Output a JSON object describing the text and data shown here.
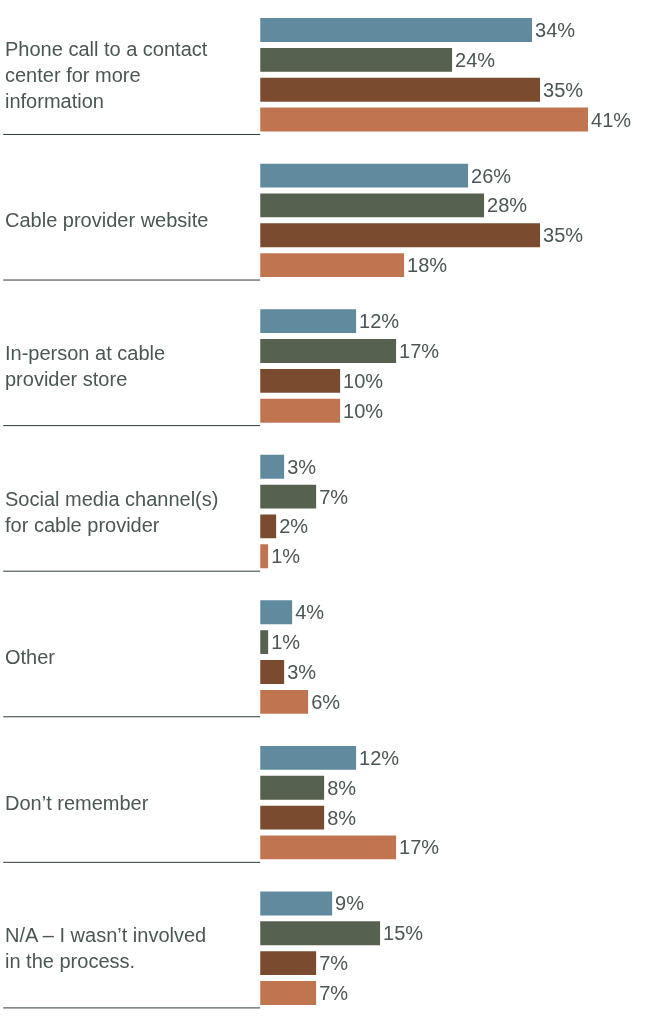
{
  "chart_data": {
    "type": "bar",
    "orientation": "horizontal",
    "categories": [
      "Phone call to a contact\ncenter for more\ninformation",
      "Cable provider website",
      "In-person at cable\nprovider store",
      "Social media channel(s)\nfor cable provider",
      "Other",
      "Don’t remember",
      "N/A – I wasn’t involved\nin the process."
    ],
    "series": [
      {
        "color": "#608a9e",
        "values": [
          34,
          26,
          12,
          3,
          4,
          12,
          9
        ],
        "value_labels": [
          "34%",
          "26%",
          "12%",
          "3%",
          "4%",
          "12%",
          "9%"
        ]
      },
      {
        "color": "#56614f",
        "values": [
          24,
          28,
          17,
          7,
          1,
          8,
          15
        ],
        "value_labels": [
          "24%",
          "28%",
          "17%",
          "7%",
          "1%",
          "8%",
          "15%"
        ]
      },
      {
        "color": "#7a4b2f",
        "values": [
          35,
          35,
          10,
          2,
          3,
          8,
          7
        ],
        "value_labels": [
          "35%",
          "35%",
          "10%",
          "2%",
          "3%",
          "8%",
          "7%"
        ]
      },
      {
        "color": "#c07550",
        "values": [
          41,
          18,
          10,
          1,
          6,
          17,
          7
        ],
        "value_labels": [
          "41%",
          "18%",
          "10%",
          "1%",
          "6%",
          "17%",
          "7%"
        ]
      }
    ],
    "xlim": [
      0,
      49
    ],
    "tick_labels": "y"
  }
}
